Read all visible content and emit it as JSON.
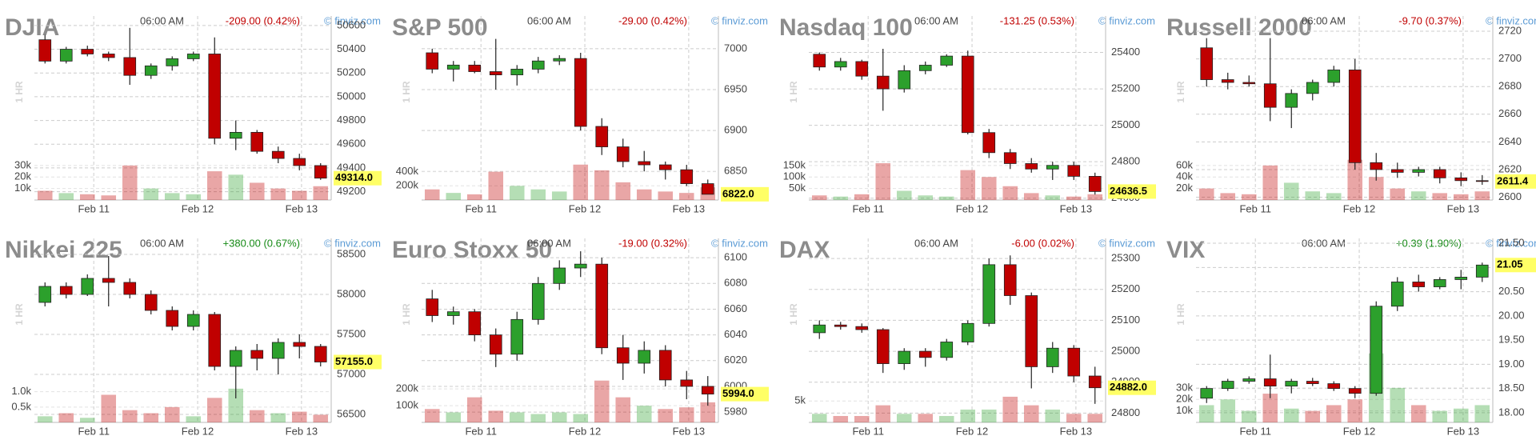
{
  "chart_data": [
    {
      "type": "candlestick",
      "title": "DJIA",
      "time": "06:00 AM",
      "change": "-209.00 (0.42%)",
      "change_color": "#c00000",
      "credit": "© finviz.com",
      "interval": "1 HR",
      "xlim": [
        -0.5,
        13.5
      ],
      "xticks": [
        {
          "value": 2.3,
          "label": "Feb 11"
        },
        {
          "value": 7.2,
          "label": "Feb 12"
        },
        {
          "value": 12.1,
          "label": "Feb 13"
        }
      ],
      "ylim": [
        49130,
        50680
      ],
      "yticks": [
        49200,
        49400,
        49600,
        49800,
        50000,
        50200,
        50400,
        50600
      ],
      "open": [
        50480,
        50300,
        50400,
        50360,
        50330,
        50180,
        50260,
        50320,
        50360,
        49650,
        49700,
        49540,
        49480,
        49420
      ],
      "high": [
        50520,
        50420,
        50430,
        50380,
        50580,
        50280,
        50340,
        50380,
        50500,
        49800,
        49720,
        49580,
        49520,
        49440
      ],
      "low": [
        50280,
        50280,
        50340,
        50300,
        50100,
        50150,
        50220,
        50300,
        49600,
        49550,
        49520,
        49440,
        49380,
        49300
      ],
      "close": [
        50300,
        50400,
        50360,
        50330,
        50180,
        50260,
        50320,
        50360,
        49650,
        49700,
        49540,
        49480,
        49420,
        49314
      ],
      "volume": [
        8000,
        6000,
        5000,
        4000,
        30000,
        10000,
        6000,
        5000,
        25000,
        22000,
        15000,
        10000,
        8000,
        12000
      ],
      "vlim": [
        0,
        160000
      ],
      "vticks": [
        {
          "value": 10000,
          "label": "10k"
        },
        {
          "value": 20000,
          "label": "20k"
        },
        {
          "value": 30000,
          "label": "30k"
        }
      ],
      "last": {
        "value": 49314,
        "label": "49314.0"
      },
      "up_color": "#2ca02c",
      "down_color": "#c00000",
      "grid": true
    },
    {
      "type": "candlestick",
      "title": "S&P 500",
      "time": "06:00 AM",
      "change": "-29.00 (0.42%)",
      "change_color": "#c00000",
      "credit": "© finviz.com",
      "interval": "1 HR",
      "xlim": [
        -0.5,
        13.5
      ],
      "xticks": [
        {
          "value": 2.3,
          "label": "Feb 11"
        },
        {
          "value": 7.2,
          "label": "Feb 12"
        },
        {
          "value": 12.1,
          "label": "Feb 13"
        }
      ],
      "ylim": [
        6815,
        7040
      ],
      "yticks": [
        6850,
        6900,
        6950,
        7000
      ],
      "open": [
        6995,
        6975,
        6980,
        6972,
        6968,
        6975,
        6985,
        6988,
        6905,
        6880,
        6862,
        6858,
        6852,
        6835
      ],
      "high": [
        7000,
        6985,
        6985,
        7012,
        6980,
        6990,
        6992,
        6995,
        6915,
        6890,
        6875,
        6862,
        6858,
        6840
      ],
      "low": [
        6970,
        6960,
        6970,
        6950,
        6955,
        6970,
        6980,
        6900,
        6870,
        6855,
        6850,
        6840,
        6832,
        6822
      ],
      "close": [
        6975,
        6980,
        6972,
        6968,
        6975,
        6985,
        6988,
        6905,
        6880,
        6862,
        6858,
        6852,
        6835,
        6822
      ],
      "volume": [
        150000,
        100000,
        80000,
        400000,
        200000,
        150000,
        120000,
        500000,
        420000,
        250000,
        150000,
        120000,
        100000,
        180000
      ],
      "vlim": [
        0,
        2600000
      ],
      "vticks": [
        {
          "value": 200000,
          "label": "200k"
        },
        {
          "value": 400000,
          "label": "400k"
        }
      ],
      "last": {
        "value": 6822,
        "label": "6822.0"
      },
      "up_color": "#2ca02c",
      "down_color": "#c00000",
      "grid": true
    },
    {
      "type": "candlestick",
      "title": "Nasdaq 100",
      "time": "06:00 AM",
      "change": "-131.25 (0.53%)",
      "change_color": "#c00000",
      "credit": "© finviz.com",
      "interval": "1 HR",
      "xlim": [
        -0.5,
        13.5
      ],
      "xticks": [
        {
          "value": 2.3,
          "label": "Feb 11"
        },
        {
          "value": 7.2,
          "label": "Feb 12"
        },
        {
          "value": 12.1,
          "label": "Feb 13"
        }
      ],
      "ylim": [
        24590,
        25600
      ],
      "yticks": [
        24600,
        24800,
        25000,
        25200,
        25400
      ],
      "open": [
        25390,
        25320,
        25350,
        25270,
        25200,
        25300,
        25330,
        25380,
        24960,
        24850,
        24790,
        24760,
        24780,
        24720
      ],
      "high": [
        25400,
        25370,
        25360,
        25420,
        25330,
        25350,
        25390,
        25410,
        24980,
        24870,
        24820,
        24800,
        24800,
        24740
      ],
      "low": [
        25300,
        25300,
        25250,
        25080,
        25180,
        25280,
        25320,
        24950,
        24820,
        24760,
        24740,
        24700,
        24700,
        24620
      ],
      "close": [
        25320,
        25350,
        25270,
        25200,
        25300,
        25330,
        25380,
        24960,
        24850,
        24790,
        24760,
        24780,
        24720,
        24636.5
      ],
      "volume": [
        20000,
        15000,
        25000,
        160000,
        40000,
        20000,
        15000,
        130000,
        100000,
        60000,
        30000,
        20000,
        15000,
        25000
      ],
      "vlim": [
        0,
        800000
      ],
      "vticks": [
        {
          "value": 50000,
          "label": "50k"
        },
        {
          "value": 100000,
          "label": "100k"
        },
        {
          "value": 150000,
          "label": "150k"
        }
      ],
      "last": {
        "value": 24636.5,
        "label": "24636.5"
      },
      "up_color": "#2ca02c",
      "down_color": "#c00000",
      "grid": true
    },
    {
      "type": "candlestick",
      "title": "Russell 2000",
      "time": "06:00 AM",
      "change": "-9.70 (0.37%)",
      "change_color": "#c00000",
      "credit": "© finviz.com",
      "interval": "1 HR",
      "xlim": [
        -0.5,
        13.5
      ],
      "xticks": [
        {
          "value": 2.3,
          "label": "Feb 11"
        },
        {
          "value": 7.2,
          "label": "Feb 12"
        },
        {
          "value": 12.1,
          "label": "Feb 13"
        }
      ],
      "ylim": [
        2598,
        2731
      ],
      "yticks": [
        2600,
        2620,
        2640,
        2660,
        2680,
        2700,
        2720
      ],
      "open": [
        2708,
        2685,
        2683,
        2682,
        2665,
        2675,
        2683,
        2692,
        2625,
        2620,
        2618,
        2620,
        2614,
        2612
      ],
      "high": [
        2715,
        2690,
        2688,
        2715,
        2678,
        2685,
        2695,
        2700,
        2632,
        2625,
        2622,
        2622,
        2618,
        2616
      ],
      "low": [
        2680,
        2678,
        2680,
        2655,
        2650,
        2670,
        2680,
        2620,
        2612,
        2614,
        2615,
        2610,
        2608,
        2609
      ],
      "close": [
        2685,
        2683,
        2682,
        2665,
        2675,
        2683,
        2692,
        2625,
        2620,
        2618,
        2620,
        2614,
        2612,
        2611.4
      ],
      "volume": [
        20000,
        12000,
        10000,
        60000,
        30000,
        15000,
        12000,
        70000,
        40000,
        20000,
        15000,
        12000,
        10000,
        15000
      ],
      "vlim": [
        0,
        320000
      ],
      "vticks": [
        {
          "value": 20000,
          "label": "20k"
        },
        {
          "value": 40000,
          "label": "40k"
        },
        {
          "value": 60000,
          "label": "60k"
        }
      ],
      "last": {
        "value": 2611.4,
        "label": "2611.4"
      },
      "up_color": "#2ca02c",
      "down_color": "#c00000",
      "grid": true
    },
    {
      "type": "candlestick",
      "title": "Nikkei 225",
      "time": "06:00 AM",
      "change": "+380.00 (0.67%)",
      "change_color": "#168a16",
      "credit": "© finviz.com",
      "interval": "1 HR",
      "xlim": [
        -0.5,
        13.5
      ],
      "xticks": [
        {
          "value": 2.3,
          "label": "Feb 11"
        },
        {
          "value": 7.2,
          "label": "Feb 12"
        },
        {
          "value": 12.1,
          "label": "Feb 13"
        }
      ],
      "ylim": [
        56400,
        58700
      ],
      "yticks": [
        56500,
        57000,
        57500,
        58000,
        58500
      ],
      "open": [
        57900,
        58100,
        58000,
        58200,
        58150,
        58000,
        57800,
        57600,
        57750,
        57100,
        57300,
        57200,
        57400,
        57350
      ],
      "high": [
        58150,
        58150,
        58250,
        58480,
        58200,
        58050,
        57850,
        57800,
        57780,
        57350,
        57380,
        57450,
        57500,
        57380
      ],
      "low": [
        57850,
        57950,
        57980,
        57850,
        57950,
        57750,
        57550,
        57550,
        57050,
        56700,
        57050,
        57000,
        57200,
        57100
      ],
      "close": [
        58100,
        58000,
        58200,
        58150,
        58000,
        57800,
        57600,
        57750,
        57100,
        57300,
        57200,
        57400,
        57350,
        57155
      ],
      "volume": [
        200,
        300,
        150,
        900,
        400,
        300,
        500,
        200,
        800,
        1100,
        400,
        300,
        350,
        250
      ],
      "vlim": [
        0,
        6000
      ],
      "vticks": [
        {
          "value": 500,
          "label": "0.5k"
        },
        {
          "value": 1000,
          "label": "1.0k"
        }
      ],
      "last": {
        "value": 57155,
        "label": "57155.0"
      },
      "up_color": "#2ca02c",
      "down_color": "#c00000",
      "grid": true
    },
    {
      "type": "candlestick",
      "title": "Euro Stoxx 50",
      "time": "06:00 AM",
      "change": "-19.00 (0.32%)",
      "change_color": "#c00000",
      "credit": "© finviz.com",
      "interval": "1 HR",
      "xlim": [
        -0.5,
        13.5
      ],
      "xticks": [
        {
          "value": 2.3,
          "label": "Feb 11"
        },
        {
          "value": 7.2,
          "label": "Feb 12"
        },
        {
          "value": 12.1,
          "label": "Feb 13"
        }
      ],
      "ylim": [
        5972,
        6115
      ],
      "yticks": [
        5980,
        6000,
        6020,
        6040,
        6060,
        6080,
        6100
      ],
      "open": [
        6068,
        6055,
        6058,
        6040,
        6025,
        6052,
        6080,
        6092,
        6095,
        6030,
        6018,
        6028,
        6005,
        6000
      ],
      "high": [
        6075,
        6062,
        6060,
        6045,
        6058,
        6085,
        6098,
        6105,
        6100,
        6040,
        6035,
        6032,
        6012,
        6008
      ],
      "low": [
        6050,
        6048,
        6035,
        6015,
        6020,
        6048,
        6075,
        6085,
        6025,
        6005,
        6010,
        6000,
        5990,
        5985
      ],
      "close": [
        6055,
        6058,
        6040,
        6025,
        6052,
        6080,
        6092,
        6095,
        6030,
        6018,
        6028,
        6005,
        6000,
        5994
      ],
      "volume": [
        80000,
        60000,
        150000,
        70000,
        60000,
        50000,
        60000,
        50000,
        250000,
        150000,
        100000,
        80000,
        90000,
        120000
      ],
      "vlim": [
        0,
        1100000
      ],
      "vticks": [
        {
          "value": 100000,
          "label": "100k"
        },
        {
          "value": 200000,
          "label": "200k"
        }
      ],
      "last": {
        "value": 5994,
        "label": "5994.0"
      },
      "up_color": "#2ca02c",
      "down_color": "#c00000",
      "grid": true
    },
    {
      "type": "candlestick",
      "title": "DAX",
      "time": "06:00 AM",
      "change": "-6.00 (0.02%)",
      "change_color": "#c00000",
      "credit": "© finviz.com",
      "interval": "1 HR",
      "xlim": [
        -0.5,
        13.5
      ],
      "xticks": [
        {
          "value": 2.3,
          "label": "Feb 11"
        },
        {
          "value": 7.2,
          "label": "Feb 12"
        },
        {
          "value": 12.1,
          "label": "Feb 13"
        }
      ],
      "ylim": [
        24770,
        25365
      ],
      "yticks": [
        24800,
        24900,
        25000,
        25100,
        25200,
        25300
      ],
      "open": [
        25060,
        25085,
        25080,
        25070,
        24960,
        25000,
        24980,
        25030,
        25090,
        25280,
        25180,
        24950,
        25010,
        24920
      ],
      "high": [
        25100,
        25095,
        25090,
        25075,
        25010,
        25010,
        25040,
        25100,
        25300,
        25310,
        25190,
        25030,
        25020,
        24950
      ],
      "low": [
        25040,
        25070,
        25060,
        24930,
        24940,
        24950,
        24970,
        25020,
        25080,
        25150,
        24880,
        24930,
        24900,
        24830
      ],
      "close": [
        25085,
        25080,
        25070,
        24960,
        25000,
        24980,
        25030,
        25090,
        25280,
        25180,
        24950,
        25010,
        24920,
        24882
      ],
      "volume": [
        2000,
        1500,
        1500,
        4000,
        2000,
        2000,
        1500,
        3000,
        3000,
        6000,
        4000,
        3000,
        2000,
        2000
      ],
      "vlim": [
        0,
        43000
      ],
      "vticks": [
        {
          "value": 5000,
          "label": "5k"
        }
      ],
      "last": {
        "value": 24882,
        "label": "24882.0"
      },
      "up_color": "#2ca02c",
      "down_color": "#c00000",
      "grid": true
    },
    {
      "type": "candlestick",
      "title": "VIX",
      "time": "06:00 AM",
      "change": "+0.39 (1.90%)",
      "change_color": "#168a16",
      "credit": "© finviz.com",
      "interval": "1 HR",
      "xlim": [
        -0.5,
        13.5
      ],
      "xticks": [
        {
          "value": 2.3,
          "label": "Feb 11"
        },
        {
          "value": 7.2,
          "label": "Feb 12"
        },
        {
          "value": 12.1,
          "label": "Feb 13"
        }
      ],
      "ylim": [
        17.8,
        21.6
      ],
      "yticks": [
        {
          "value": 18,
          "label": "18.00"
        },
        {
          "value": 18.5,
          "label": "18.50"
        },
        {
          "value": 19,
          "label": "19.00"
        },
        {
          "value": 19.5,
          "label": "19.50"
        },
        {
          "value": 20,
          "label": "20.00"
        },
        {
          "value": 20.5,
          "label": "20.50"
        },
        {
          "value": 21,
          "label": "21.00"
        },
        {
          "value": 21.5,
          "label": "21.50"
        }
      ],
      "open": [
        18.3,
        18.5,
        18.65,
        18.7,
        18.55,
        18.65,
        18.6,
        18.5,
        18.4,
        20.2,
        20.7,
        20.6,
        20.75,
        20.8
      ],
      "high": [
        18.55,
        18.7,
        18.75,
        19.2,
        18.7,
        18.72,
        18.65,
        18.55,
        20.3,
        20.8,
        20.85,
        20.8,
        20.95,
        21.1
      ],
      "low": [
        18.2,
        18.45,
        18.6,
        18.3,
        18.4,
        18.55,
        18.45,
        18.3,
        18.35,
        20.1,
        20.5,
        20.55,
        20.55,
        20.7
      ],
      "close": [
        18.5,
        18.65,
        18.7,
        18.55,
        18.65,
        18.6,
        18.5,
        18.4,
        20.2,
        20.7,
        20.6,
        20.75,
        20.8,
        21.05
      ],
      "volume": [
        15000,
        20000,
        10000,
        25000,
        12000,
        10000,
        15000,
        20000,
        60000,
        30000,
        15000,
        10000,
        12000,
        15000
      ],
      "vlim": [
        0,
        160000
      ],
      "vticks": [
        {
          "value": 10000,
          "label": "10k"
        },
        {
          "value": 20000,
          "label": "20k"
        },
        {
          "value": 30000,
          "label": "30k"
        }
      ],
      "last": {
        "value": 21.05,
        "label": "21.05"
      },
      "up_color": "#2ca02c",
      "down_color": "#c00000",
      "grid": true
    }
  ]
}
